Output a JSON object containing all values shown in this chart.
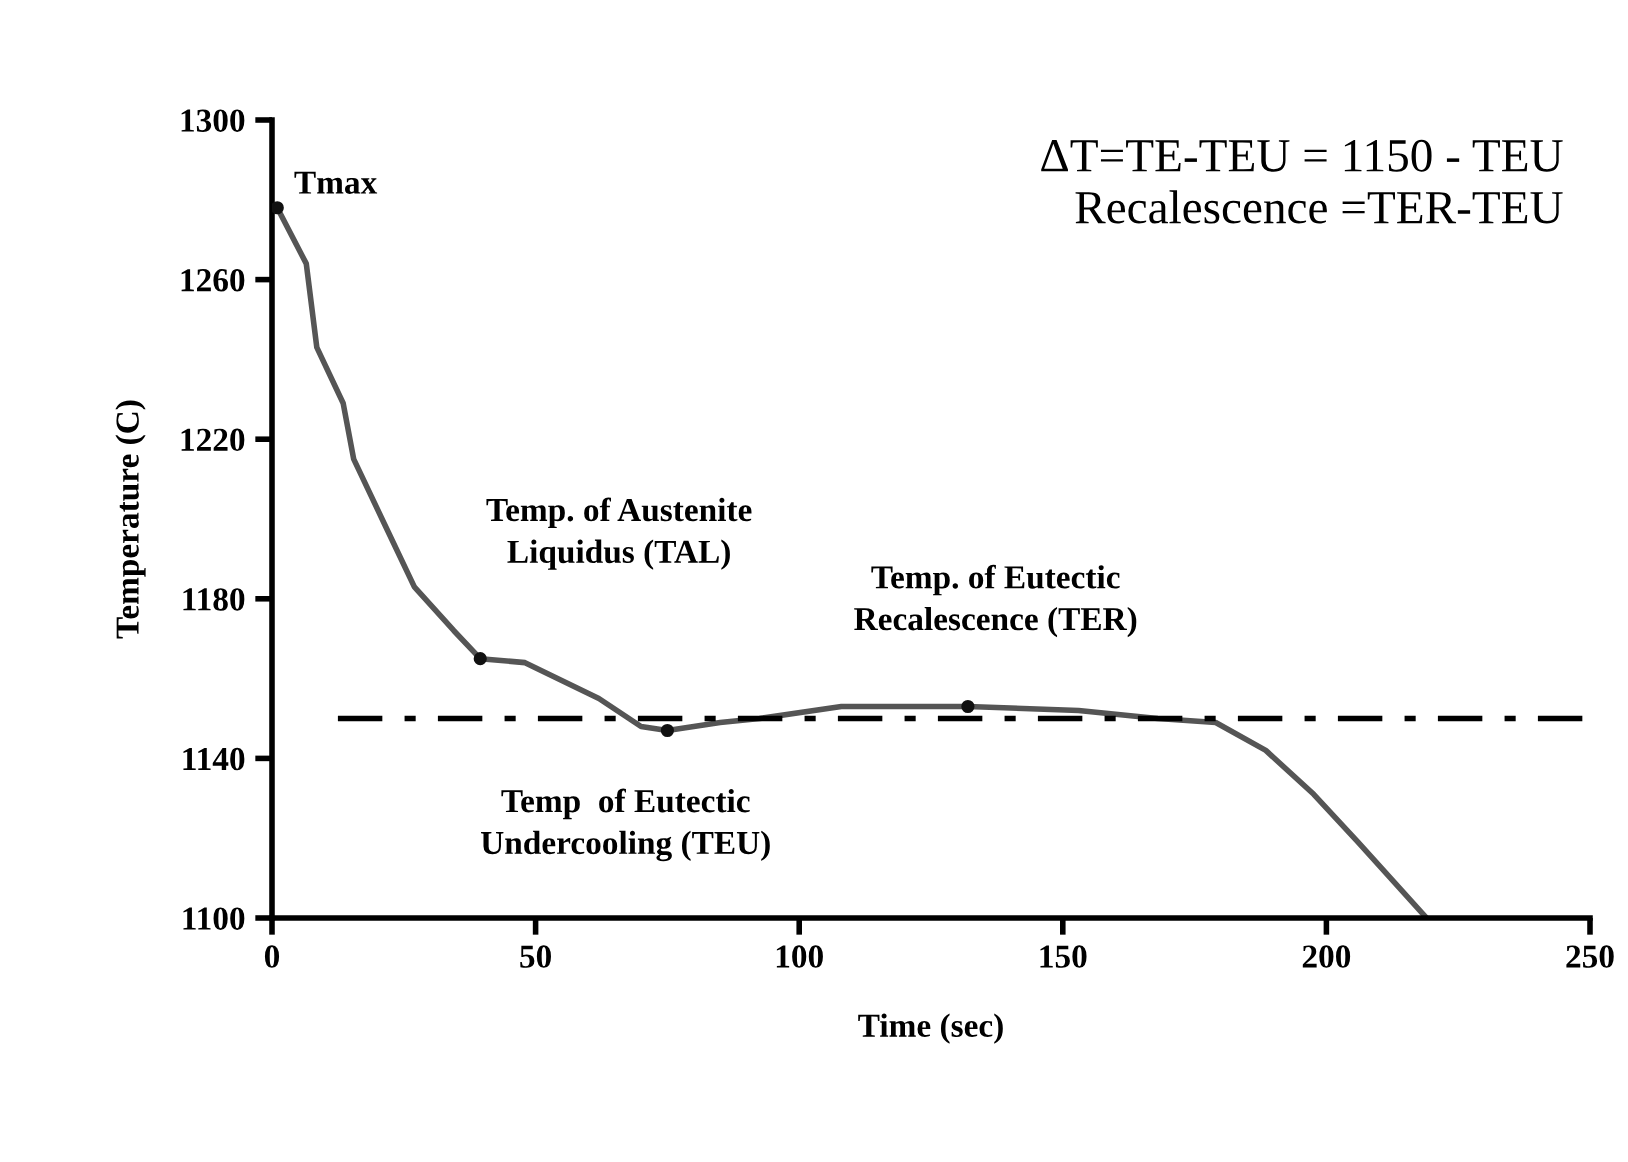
{
  "chart_data": {
    "type": "line",
    "xlabel": "Time (sec)",
    "ylabel": "Temperature (C)",
    "xlim": [
      0,
      250
    ],
    "ylim": [
      1100,
      1300
    ],
    "xticks": [
      0,
      50,
      100,
      150,
      200,
      250
    ],
    "yticks": [
      1100,
      1140,
      1180,
      1220,
      1260,
      1300
    ],
    "grid": false,
    "legend": false,
    "series": [
      {
        "color": "#555555",
        "x": [
          1,
          6.5,
          8.5,
          13.5,
          15.5,
          21.6,
          27,
          34.5,
          39.5,
          48,
          62,
          70,
          75,
          85,
          92.5,
          108,
          132,
          153,
          168,
          179,
          188.5,
          197.6,
          206,
          219
        ],
        "values": [
          1278,
          1264,
          1243,
          1229,
          1215,
          1198,
          1183,
          1172,
          1165,
          1164,
          1155,
          1148,
          1147,
          1149,
          1150,
          1153,
          1153,
          1152,
          1150,
          1149,
          1142,
          1131,
          1119,
          1100
        ]
      },
      {
        "type": "scatter",
        "color": "#111111",
        "marker": "circle",
        "x": [
          1,
          39.5,
          75,
          132
        ],
        "values": [
          1278,
          1165,
          1147,
          1153
        ]
      }
    ],
    "ref_lines": [
      {
        "axis": "y",
        "value": 1150,
        "color": "#000000",
        "line_style": "dashdot"
      }
    ],
    "annotations": [
      {
        "text": "Tmax",
        "x": 1,
        "y": 1278
      },
      {
        "text": "Temp. of Austenite\nLiquidus (TAL)",
        "x": 39.5,
        "y": 1165
      },
      {
        "text": "Temp  of Eutectic\nUndercooling (TEU)",
        "x": 75,
        "y": 1147
      },
      {
        "text": "Temp. of Eutectic\nRecalescence (TER)",
        "x": 132,
        "y": 1153
      },
      "ΔT=TE-TEU = 1150 - TEU",
      "Recalescence =TER-TEU"
    ]
  }
}
